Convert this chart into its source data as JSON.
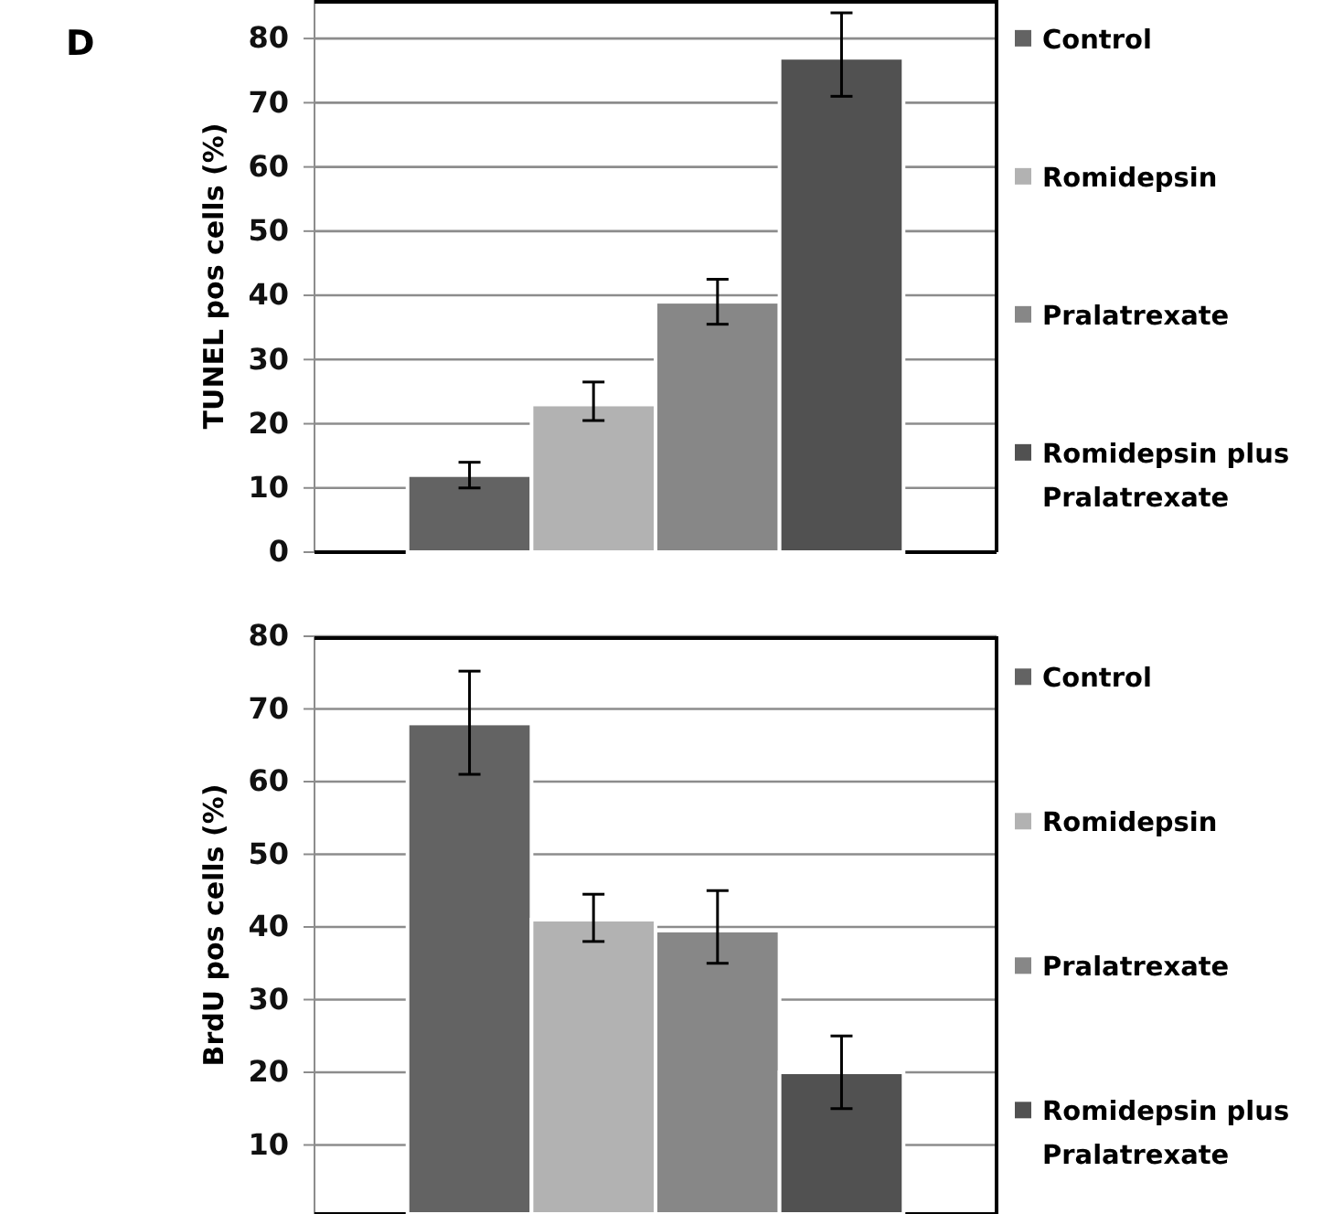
{
  "chart_data": [
    {
      "type": "bar",
      "ylabel": "TUNEL pos cells (%)",
      "annotations": [
        "D"
      ],
      "categories": [
        null
      ],
      "ylim": [
        0,
        86
      ],
      "yticks": [
        0,
        10,
        20,
        30,
        40,
        50,
        60,
        70,
        80
      ],
      "grid": "y",
      "legend": "right",
      "series": [
        {
          "name": "Control",
          "color": "#636363",
          "values": [
            12
          ],
          "errors": [
            [
              10,
              14
            ]
          ]
        },
        {
          "name": "Romidepsin",
          "color": "#b2b2b2",
          "values": [
            23
          ],
          "errors": [
            [
              20.5,
              26.5
            ]
          ]
        },
        {
          "name": "Pralatrexate",
          "color": "#878787",
          "values": [
            39
          ],
          "errors": [
            [
              35.5,
              42.5
            ]
          ]
        },
        {
          "name": "Romidepsin plus Pralatrexate",
          "color": "#515151",
          "values": [
            77
          ],
          "errors": [
            [
              71,
              84
            ]
          ]
        }
      ]
    },
    {
      "type": "bar",
      "ylabel": "BrdU pos cells (%)",
      "categories": [
        null
      ],
      "ylim": [
        0.5,
        80
      ],
      "yticks": [
        10,
        20,
        30,
        40,
        50,
        60,
        70,
        80
      ],
      "grid": "y",
      "legend": "right",
      "series": [
        {
          "name": "Control",
          "color": "#636363",
          "values": [
            68
          ],
          "errors": [
            [
              61,
              75.2
            ]
          ]
        },
        {
          "name": "Romidepsin",
          "color": "#b2b2b2",
          "values": [
            41
          ],
          "errors": [
            [
              38,
              44.5
            ]
          ]
        },
        {
          "name": "Pralatrexate",
          "color": "#878787",
          "values": [
            39.5
          ],
          "errors": [
            [
              35,
              45
            ]
          ]
        },
        {
          "name": "Romidepsin plus Pralatrexate",
          "color": "#515151",
          "values": [
            20
          ],
          "errors": [
            [
              15,
              25
            ]
          ]
        }
      ]
    }
  ]
}
